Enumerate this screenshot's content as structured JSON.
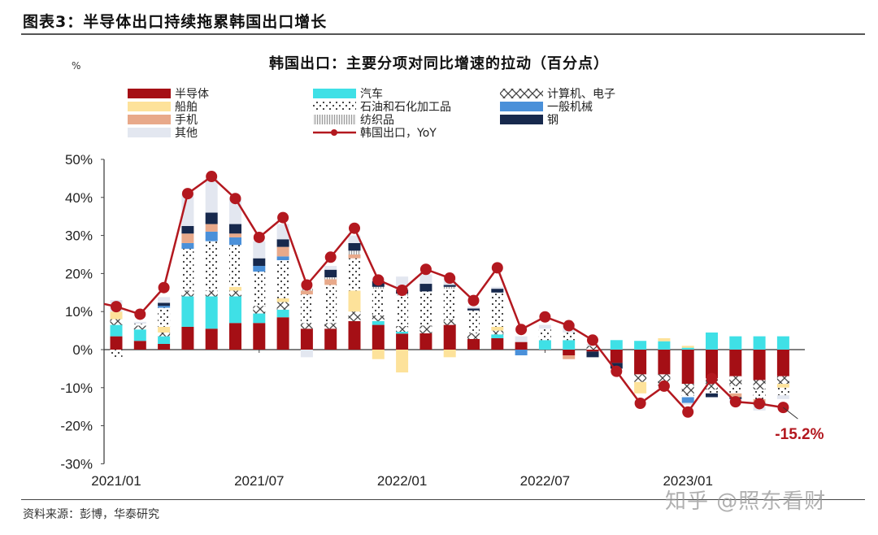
{
  "figure_title": "图表3：半导体出口持续拖累韩国出口增长",
  "unit_mark": "%",
  "source": "资料来源：彭博，华泰研究",
  "watermark": "知乎 @照东看财",
  "colors": {
    "semiconductor": "#a50f15",
    "auto": "#3fe0e6",
    "computer": "#555555",
    "ships": "#fde29a",
    "petro": "#333333",
    "machinery": "#4a90d9",
    "phones": "#e8a98a",
    "textiles": "#bbbbbb",
    "steel": "#17294d",
    "other": "#e3e7f0",
    "yoy": "#b3181f"
  },
  "chart_data": {
    "type": "bar",
    "stacked": true,
    "title": "韩国出口：主要分项对同比增速的拉动（百分点）",
    "xlabel": "",
    "ylabel": "%",
    "ylim": [
      -30,
      50
    ],
    "yticks": [
      -30,
      -20,
      -10,
      0,
      10,
      20,
      30,
      40,
      50
    ],
    "ytick_labels": [
      "-30%",
      "-20%",
      "-10%",
      "0%",
      "10%",
      "20%",
      "30%",
      "40%",
      "50%"
    ],
    "xtick_labels": [
      {
        "index": 0,
        "label": "2021/01"
      },
      {
        "index": 6,
        "label": "2021/07"
      },
      {
        "index": 12,
        "label": "2022/01"
      },
      {
        "index": 18,
        "label": "2022/07"
      },
      {
        "index": 24,
        "label": "2023/01"
      }
    ],
    "legend_placement": "top",
    "categories": [
      "2021/01",
      "2021/02",
      "2021/03",
      "2021/04",
      "2021/05",
      "2021/06",
      "2021/07",
      "2021/08",
      "2021/09",
      "2021/10",
      "2021/11",
      "2021/12",
      "2022/01",
      "2022/02",
      "2022/03",
      "2022/04",
      "2022/05",
      "2022/06",
      "2022/07",
      "2022/08",
      "2022/09",
      "2022/10",
      "2022/11",
      "2022/12",
      "2023/01",
      "2023/02",
      "2023/03",
      "2023/04",
      "2023/05"
    ],
    "series": [
      {
        "key": "semiconductor",
        "name": "半导体",
        "values": [
          3.5,
          2.3,
          1.5,
          6,
          5.5,
          7,
          7,
          8.5,
          5.5,
          5.5,
          7.5,
          6.5,
          4.2,
          4.3,
          6.5,
          2.8,
          3,
          2,
          0,
          -1.5,
          -0.5,
          -3.5,
          -6.5,
          -6.5,
          -9,
          -7.5,
          -7,
          -8,
          -7
        ]
      },
      {
        "key": "auto",
        "name": "汽车",
        "values": [
          3,
          3,
          2,
          8,
          8.5,
          7,
          2.5,
          2,
          0,
          0,
          0,
          1,
          0.5,
          0,
          0,
          0,
          1,
          0,
          2.5,
          2.5,
          0,
          2.5,
          2.3,
          2.2,
          0.5,
          4.5,
          3.5,
          3.5,
          3.5
        ]
      },
      {
        "key": "computer",
        "name": "计算机、电子",
        "values": [
          1.5,
          1,
          1,
          1.5,
          1.5,
          1.5,
          2,
          2,
          1.5,
          1.5,
          2.5,
          1.5,
          1.5,
          2,
          1.5,
          1.5,
          1,
          0,
          0,
          0,
          1,
          0,
          -2,
          -2.5,
          -3,
          -3,
          -2.5,
          -2.5,
          -2
        ]
      },
      {
        "key": "ships",
        "name": "船舶",
        "values": [
          2,
          0,
          1.5,
          0,
          0,
          1,
          0,
          1,
          0,
          0,
          5.5,
          -2.5,
          -6,
          0,
          -2,
          0,
          1,
          0,
          0,
          0,
          0,
          0,
          -3,
          0.8,
          0.5,
          0,
          0,
          0,
          -1
        ]
      },
      {
        "key": "petro",
        "name": "石油和石化加工品",
        "values": [
          -2,
          0.5,
          5,
          11,
          13,
          11,
          9,
          10,
          7.5,
          10,
          8.5,
          7,
          8,
          9,
          8,
          6,
          9,
          0,
          3,
          2,
          0,
          0,
          0,
          -0.5,
          -0.5,
          -1,
          -2,
          -2.5,
          -2
        ]
      },
      {
        "key": "machinery",
        "name": "一般机械",
        "values": [
          0,
          0,
          0.5,
          1.5,
          2.5,
          2,
          1.5,
          1,
          0,
          0,
          0,
          0,
          0,
          0,
          0,
          0,
          0,
          -1.5,
          0,
          0,
          0,
          0,
          0,
          0,
          -1.5,
          0,
          0,
          0,
          0
        ]
      },
      {
        "key": "phones",
        "name": "手机",
        "values": [
          0,
          0,
          0,
          2.5,
          2,
          1,
          0,
          2.5,
          1,
          1.5,
          1,
          0,
          0,
          0,
          0,
          0,
          0,
          0,
          0,
          -1,
          0,
          0,
          0,
          0,
          0,
          0,
          -1,
          -1,
          0
        ]
      },
      {
        "key": "textiles",
        "name": "纺织品",
        "values": [
          0,
          0,
          0,
          0,
          0,
          0,
          0,
          0,
          0.5,
          0.5,
          1,
          0.5,
          0.5,
          0,
          0.5,
          0,
          0,
          0,
          0,
          0,
          0,
          0,
          0,
          0,
          0,
          0,
          0,
          0,
          0
        ]
      },
      {
        "key": "steel",
        "name": "钢",
        "values": [
          0,
          0,
          0.8,
          2,
          3,
          2.5,
          2,
          2,
          0,
          2,
          2,
          1.5,
          1,
          2,
          0.5,
          0.5,
          1,
          0,
          0,
          0,
          -1.5,
          -1.5,
          0,
          0,
          0,
          -1,
          -0.5,
          -0.5,
          0
        ]
      },
      {
        "key": "other",
        "name": "其他",
        "values": [
          3,
          0.5,
          1.5,
          8.5,
          9,
          6.5,
          4.5,
          4,
          -2,
          1,
          2,
          1,
          3.5,
          2.5,
          1.5,
          0.5,
          0.5,
          1.5,
          1,
          2.5,
          0.5,
          0,
          0,
          0,
          -0.5,
          0,
          -1,
          -1.5,
          -1
        ]
      }
    ],
    "line": {
      "key": "yoy",
      "name": "韩国出口，YoY",
      "values": [
        11.3,
        9.3,
        16.3,
        41.0,
        45.5,
        39.7,
        29.5,
        34.7,
        17.0,
        24.3,
        31.9,
        18.3,
        15.6,
        21.1,
        18.8,
        12.9,
        21.5,
        5.3,
        8.6,
        6.3,
        2.5,
        -5.7,
        -14.1,
        -9.6,
        -16.4,
        -7.6,
        -13.7,
        -14.2,
        -15.2
      ]
    },
    "annotations": [
      {
        "index": 28,
        "text": "-15.2%"
      }
    ]
  },
  "legend_layout": [
    [
      "semiconductor",
      "auto",
      "computer"
    ],
    [
      "ships",
      "petro",
      "machinery"
    ],
    [
      "phones",
      "textiles",
      "steel"
    ],
    [
      "other",
      "yoy"
    ]
  ]
}
